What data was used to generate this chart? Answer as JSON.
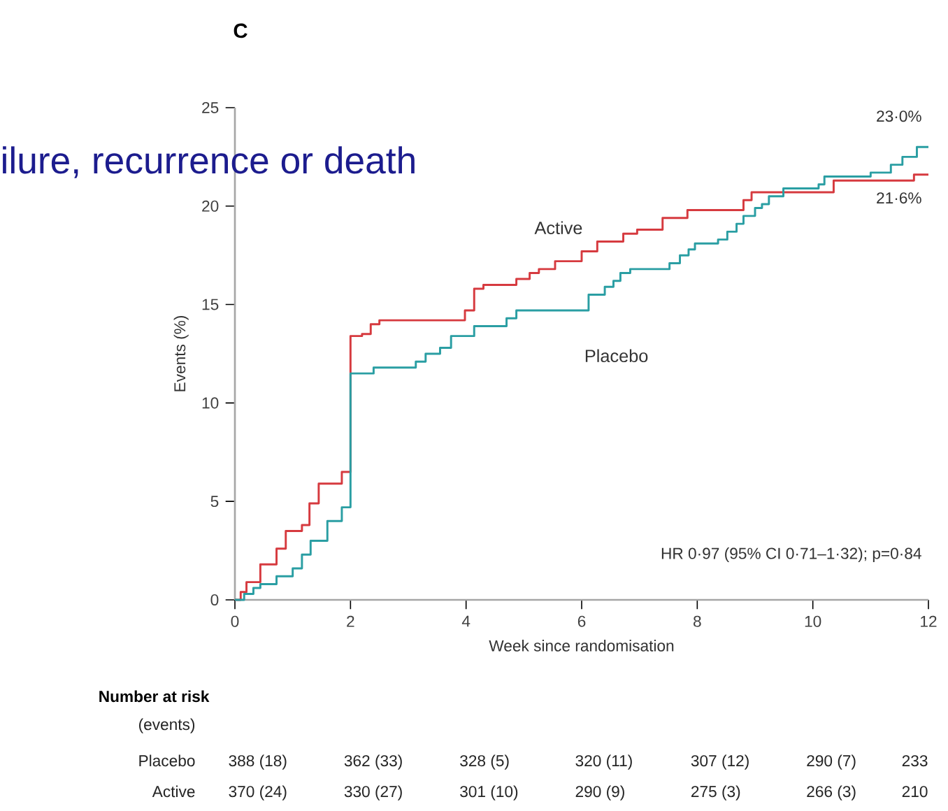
{
  "chart_data": {
    "type": "step",
    "title": "C",
    "xlabel": "Week since randomisation",
    "ylabel": "Events (%)",
    "xlim": [
      0,
      12
    ],
    "xticks": [
      0,
      2,
      4,
      6,
      8,
      10,
      12
    ],
    "ylim": [
      0,
      25
    ],
    "yticks": [
      0,
      5,
      10,
      15,
      20,
      25
    ],
    "legend": false,
    "grid": false,
    "marker": "none",
    "line_style": "solid",
    "series": [
      {
        "name": "Active",
        "color": "#d63a3f",
        "x": [
          0,
          0.1,
          0.2,
          0.44,
          0.72,
          0.88,
          1.16,
          1.29,
          1.45,
          1.85,
          2.0,
          2.2,
          2.35,
          2.5,
          2.7,
          3.98,
          4.14,
          4.3,
          4.87,
          5.1,
          5.26,
          5.54,
          6.0,
          6.27,
          6.72,
          6.96,
          7.4,
          7.83,
          8.8,
          8.94,
          10.36,
          11.75,
          12
        ],
        "values": [
          0,
          0.4,
          0.9,
          1.8,
          2.6,
          3.5,
          3.8,
          4.9,
          5.9,
          6.5,
          13.4,
          13.5,
          14.0,
          14.2,
          14.2,
          14.7,
          15.8,
          16.0,
          16.3,
          16.6,
          16.8,
          17.2,
          17.7,
          18.2,
          18.6,
          18.8,
          19.4,
          19.8,
          20.3,
          20.7,
          21.3,
          21.6,
          21.6
        ]
      },
      {
        "name": "Placebo",
        "color": "#2a9ea3",
        "x": [
          0,
          0.16,
          0.32,
          0.44,
          0.72,
          1.0,
          1.16,
          1.31,
          1.6,
          1.85,
          2.0,
          2.4,
          3.13,
          3.3,
          3.55,
          3.74,
          4.14,
          4.7,
          4.87,
          6.12,
          6.4,
          6.55,
          6.67,
          6.84,
          7.52,
          7.7,
          7.85,
          7.96,
          8.36,
          8.52,
          8.68,
          8.8,
          9.0,
          9.12,
          9.24,
          9.49,
          10.1,
          10.2,
          11.0,
          11.35,
          11.55,
          11.8,
          12
        ],
        "values": [
          0,
          0.3,
          0.6,
          0.8,
          1.2,
          1.6,
          2.3,
          3.0,
          4.0,
          4.7,
          11.5,
          11.8,
          12.1,
          12.5,
          12.8,
          13.4,
          13.9,
          14.3,
          14.7,
          15.5,
          15.9,
          16.2,
          16.6,
          16.8,
          17.1,
          17.5,
          17.8,
          18.1,
          18.3,
          18.7,
          19.1,
          19.5,
          19.9,
          20.1,
          20.5,
          20.9,
          21.1,
          21.5,
          21.7,
          22.1,
          22.5,
          23.0,
          23.0
        ]
      }
    ],
    "annotations": [
      {
        "text": "23·0%",
        "x": 12,
        "y": 23.0
      },
      {
        "text": "21·6%",
        "x": 12,
        "y": 21.6
      },
      "HR 0·97 (95% CI 0·71–1·32); p=0·84",
      "ilure, recurrence or death",
      "Number at risk",
      "(events)",
      "Placebo",
      "388 (18)",
      "362 (33)",
      "328 (5)",
      "320 (11)",
      "307 (12)",
      "290 (7)",
      "233",
      "Active",
      "370 (24)",
      "330 (27)",
      "301 (10)",
      "290 (9)",
      "275 (3)",
      "266 (3)",
      "210"
    ]
  }
}
